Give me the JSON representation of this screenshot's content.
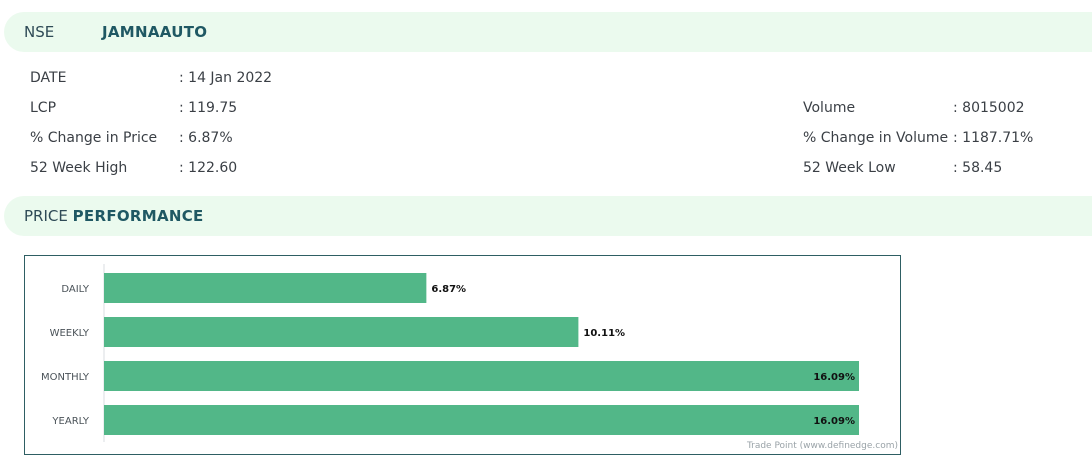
{
  "header": {
    "exchange": "NSE",
    "symbol": "JAMNAAUTO"
  },
  "stats_left": [
    {
      "label": "DATE",
      "value": ": 14 Jan 2022"
    },
    {
      "label": "LCP",
      "value": ": 119.75"
    },
    {
      "label": "% Change in Price",
      "value": ": 6.87%"
    },
    {
      "label": "52 Week High",
      "value": ": 122.60"
    }
  ],
  "stats_right": [
    {
      "label": "Volume",
      "value": ": 8015002"
    },
    {
      "label": "% Change in Volume",
      "value": ": 1187.71%"
    },
    {
      "label": "52 Week Low",
      "value": ": 58.45"
    }
  ],
  "performance": {
    "title_prefix": "PRICE",
    "title_bold": "PERFORMANCE"
  },
  "chart_data": {
    "type": "bar",
    "orientation": "horizontal",
    "categories": [
      "DAILY",
      "WEEKLY",
      "MONTHLY",
      "YEARLY"
    ],
    "values": [
      6.87,
      10.11,
      16.09,
      16.09
    ],
    "value_labels": [
      "6.87%",
      "10.11%",
      "16.09%",
      "16.09%"
    ],
    "bar_color": "#52b788",
    "credit": "Trade Point (www.definedge.com)"
  }
}
